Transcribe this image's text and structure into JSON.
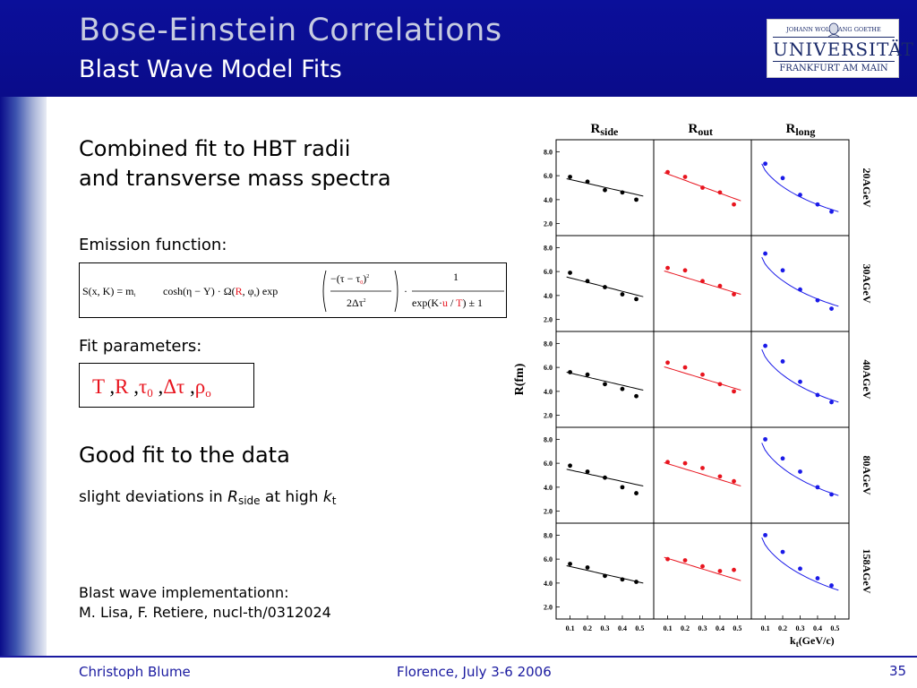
{
  "header": {
    "title": "Bose-Einstein Correlations",
    "subtitle": "Blast Wave Model Fits",
    "logo": {
      "top_line": "JOHANN WOLFGANG GOETHE",
      "name": "UNIVERSITÄT",
      "city": "FRANKFURT AM MAIN"
    }
  },
  "content": {
    "intro_line1": "Combined fit to HBT radii",
    "intro_line2": "and transverse mass spectra",
    "emission_label": "Emission function:",
    "emission_formula": {
      "lhs": "S(x, K) = m",
      "lhs_sub": "t",
      "mid": " cosh(η − Y) · Ω(",
      "R": "R",
      "comma_phi": ", φ",
      "phi_sub": "s",
      "close_exp": ") exp",
      "num": "−(τ − τ",
      "num_sub": "0",
      "num_close": ")",
      "num_sup": "2",
      "den": "2Δτ",
      "den_sup": "2",
      "dot": "·",
      "frac2_num": "1",
      "frac2_den_a": "exp(K·",
      "frac2_den_u": "u",
      "frac2_den_slash": " / ",
      "frac2_den_T": "T",
      "frac2_den_b": ") ± 1"
    },
    "fit_params_label": "Fit parameters:",
    "fit_params": {
      "T": "T",
      "R": "R",
      "tau": "τ",
      "tau_sub": "0",
      "dtau": "Δτ",
      "rho": "ρ",
      "rho_sub": "o",
      "sep": ","
    },
    "good_fit": "Good fit to the data",
    "deviation": {
      "prefix": "slight deviations in ",
      "R": "R",
      "R_sub": "side",
      "mid": " at high ",
      "k": "k",
      "k_sub": "t"
    },
    "impl_line1": "Blast wave implementationn:",
    "impl_line2": "M. Lisa, F. Retiere, nucl-th/0312024"
  },
  "footer": {
    "author": "Christoph Blume",
    "venue": "Florence, July 3-6 2006",
    "page": "35"
  },
  "chart_data": {
    "type": "scatter",
    "ylabel": "R(fm)",
    "xlabel": "k",
    "xlabel_sub": "t",
    "xlabel_unit": "(GeV/c)",
    "columns": [
      {
        "main": "R",
        "sub": "side"
      },
      {
        "main": "R",
        "sub": "out"
      },
      {
        "main": "R",
        "sub": "long"
      }
    ],
    "rows": [
      "20AGeV",
      "30AGeV",
      "40AGeV",
      "80AGeV",
      "158AGeV"
    ],
    "xlim": [
      0.02,
      0.58
    ],
    "ylim": [
      1.0,
      9.0
    ],
    "yticks": [
      "2.0",
      "4.0",
      "6.0",
      "8.0"
    ],
    "xticks": [
      "0.1",
      "0.2",
      "0.3",
      "0.4",
      "0.5"
    ],
    "x": [
      0.1,
      0.2,
      0.3,
      0.4,
      0.48
    ],
    "colors": [
      "#000000",
      "#e8141e",
      "#1a1ae8"
    ],
    "panels": [
      [
        {
          "points": [
            5.9,
            5.5,
            4.8,
            4.6,
            4.0
          ],
          "fit": [
            5.75,
            4.3
          ]
        },
        {
          "points": [
            6.3,
            5.9,
            5.0,
            4.6,
            3.6
          ],
          "fit": [
            6.25,
            3.9
          ]
        },
        {
          "points": [
            7.0,
            5.8,
            4.4,
            3.6,
            3.0
          ],
          "fit": [
            7.0,
            3.0
          ]
        }
      ],
      [
        {
          "points": [
            5.9,
            5.2,
            4.7,
            4.1,
            3.7
          ],
          "fit": [
            5.55,
            3.9
          ]
        },
        {
          "points": [
            6.3,
            6.1,
            5.2,
            4.8,
            4.1
          ],
          "fit": [
            6.05,
            4.1
          ]
        },
        {
          "points": [
            7.5,
            6.1,
            4.5,
            3.6,
            2.9
          ],
          "fit": [
            7.2,
            3.1
          ]
        }
      ],
      [
        {
          "points": [
            5.6,
            5.4,
            4.6,
            4.2,
            3.6
          ],
          "fit": [
            5.6,
            4.1
          ]
        },
        {
          "points": [
            6.4,
            6.0,
            5.4,
            4.6,
            4.0
          ],
          "fit": [
            6.05,
            4.1
          ]
        },
        {
          "points": [
            7.8,
            6.5,
            4.8,
            3.7,
            3.1
          ],
          "fit": [
            7.5,
            3.1
          ]
        }
      ],
      [
        {
          "points": [
            5.8,
            5.3,
            4.8,
            4.0,
            3.5
          ],
          "fit": [
            5.5,
            4.1
          ]
        },
        {
          "points": [
            6.1,
            6.0,
            5.6,
            4.9,
            4.5
          ],
          "fit": [
            6.05,
            4.1
          ]
        },
        {
          "points": [
            8.0,
            6.4,
            5.3,
            4.0,
            3.4
          ],
          "fit": [
            7.7,
            3.3
          ]
        }
      ],
      [
        {
          "points": [
            5.6,
            5.3,
            4.6,
            4.3,
            4.1
          ],
          "fit": [
            5.45,
            4.0
          ]
        },
        {
          "points": [
            6.0,
            5.9,
            5.4,
            5.0,
            5.1
          ],
          "fit": [
            6.15,
            4.2
          ]
        },
        {
          "points": [
            8.0,
            6.6,
            5.2,
            4.4,
            3.8
          ],
          "fit": [
            7.8,
            3.4
          ]
        }
      ]
    ]
  }
}
